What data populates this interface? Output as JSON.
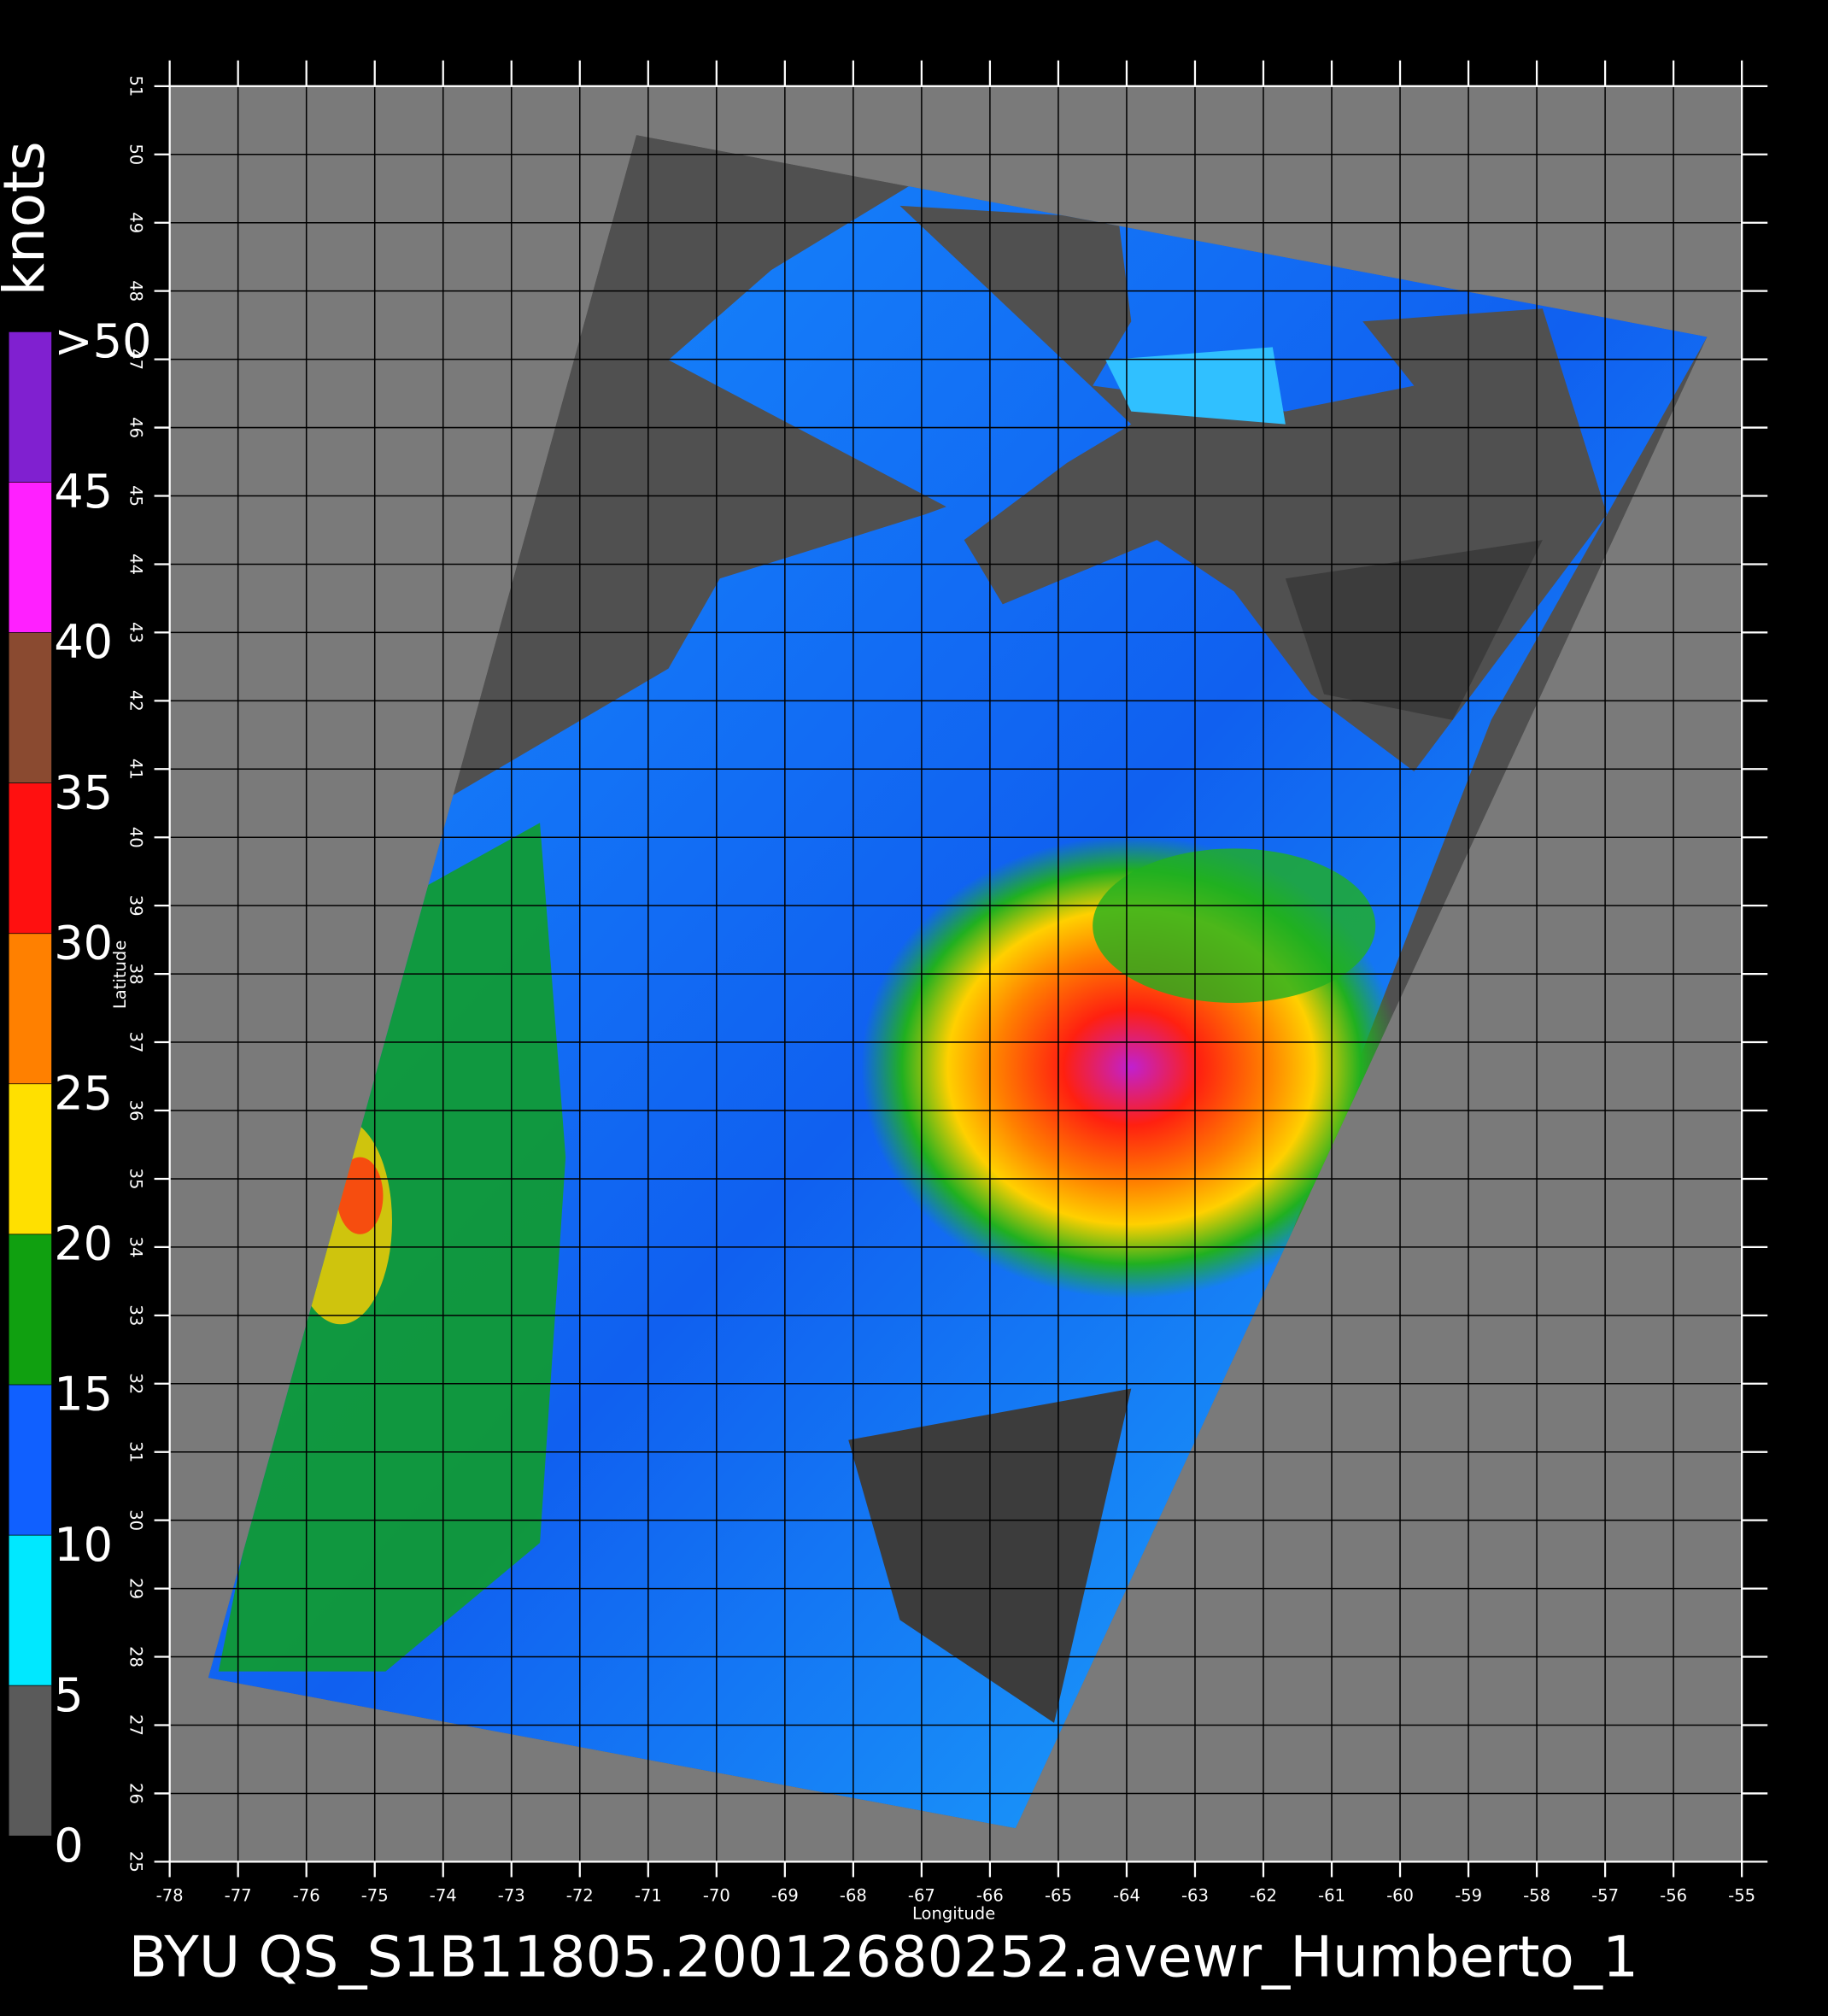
{
  "chart_data": {
    "type": "wind-map",
    "title": "BYU  QS_S1B11805.20012680252.avewr_Humberto_1",
    "xlabel": "Longitude",
    "ylabel": "Latitude",
    "xlim": [
      -78,
      -55
    ],
    "ylim": [
      25,
      51
    ],
    "xticks": [
      -78,
      -77,
      -76,
      -75,
      -74,
      -73,
      -72,
      -71,
      -70,
      -69,
      -68,
      -67,
      -66,
      -65,
      -64,
      -63,
      -62,
      -61,
      -60,
      -59,
      -58,
      -57,
      -56,
      -55
    ],
    "yticks": [
      25,
      26,
      27,
      28,
      29,
      30,
      31,
      32,
      33,
      34,
      35,
      36,
      37,
      38,
      39,
      40,
      41,
      42,
      43,
      44,
      45,
      46,
      47,
      48,
      49,
      50,
      51
    ],
    "grid": true,
    "colorbar": {
      "title": "knots",
      "lim": [
        0,
        50
      ],
      "ticks": [
        0,
        5,
        10,
        15,
        20,
        25,
        30,
        35,
        40,
        45,
        {
          "value": 50,
          "label": ">50"
        }
      ],
      "colors": [
        "#5a5a5a",
        "#00e8ff",
        "#1060ff",
        "#10a010",
        "#ffe000",
        "#ff8000",
        "#ff1010",
        "#8a4a30",
        "#ff20ff",
        "#8020d0"
      ]
    }
  }
}
